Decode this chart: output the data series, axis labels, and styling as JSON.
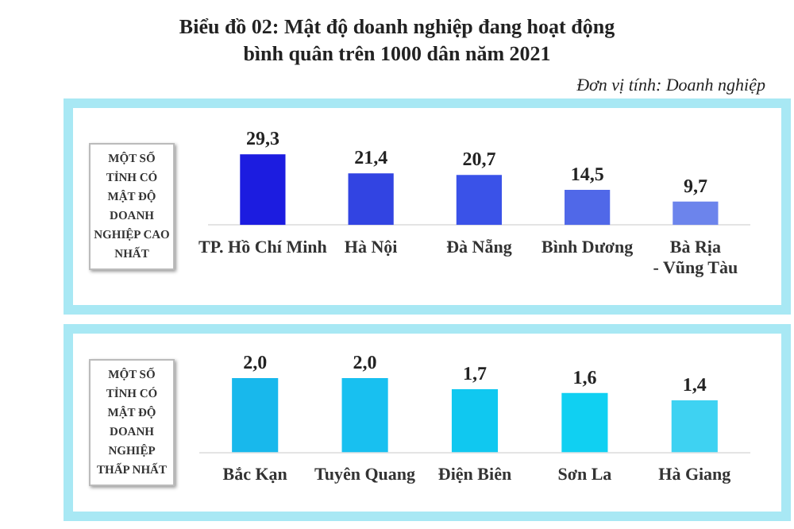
{
  "chart_data": [
    {
      "type": "bar",
      "title": "Biểu đồ 02: Mật độ doanh nghiệp đang hoạt động bình quân trên 1000 dân năm 2021",
      "annotations": [
        "Đơn vị tính: Doanh nghiệp"
      ],
      "ylabel": "MỘT SỐ TỈNH CÓ MẬT ĐỘ DOANH NGHIỆP CAO NHẤT",
      "categories": [
        "TP. Hồ Chí Minh",
        "Hà Nội",
        "Đà Nẵng",
        "Bình Dương",
        "Bà Rịa\n- Vũng Tàu"
      ],
      "values": [
        29.3,
        21.4,
        20.7,
        14.5,
        9.7
      ],
      "value_labels": [
        "29,3",
        "21,4",
        "20,7",
        "14,5",
        "9,7"
      ],
      "colors": [
        "#1c1ce0",
        "#3244e2",
        "#3a52e8",
        "#5068e8",
        "#6c84ec"
      ],
      "grid": false,
      "legend": false,
      "tick_labels": "x"
    },
    {
      "type": "bar",
      "ylabel": "MỘT SỐ TỈNH CÓ MẬT ĐỘ DOANH NGHIỆP THẤP NHẤT",
      "categories": [
        "Bắc Kạn",
        "Tuyên Quang",
        "Điện Biên",
        "Sơn La",
        "Hà Giang"
      ],
      "values": [
        2.0,
        2.0,
        1.7,
        1.6,
        1.4
      ],
      "value_labels": [
        "2,0",
        "2,0",
        "1,7",
        "1,6",
        "1,4"
      ],
      "colors": [
        "#18b8ec",
        "#18c0f0",
        "#10c8f0",
        "#10d0f2",
        "#3ed2f2"
      ],
      "grid": false,
      "legend": false,
      "tick_labels": "x"
    }
  ]
}
